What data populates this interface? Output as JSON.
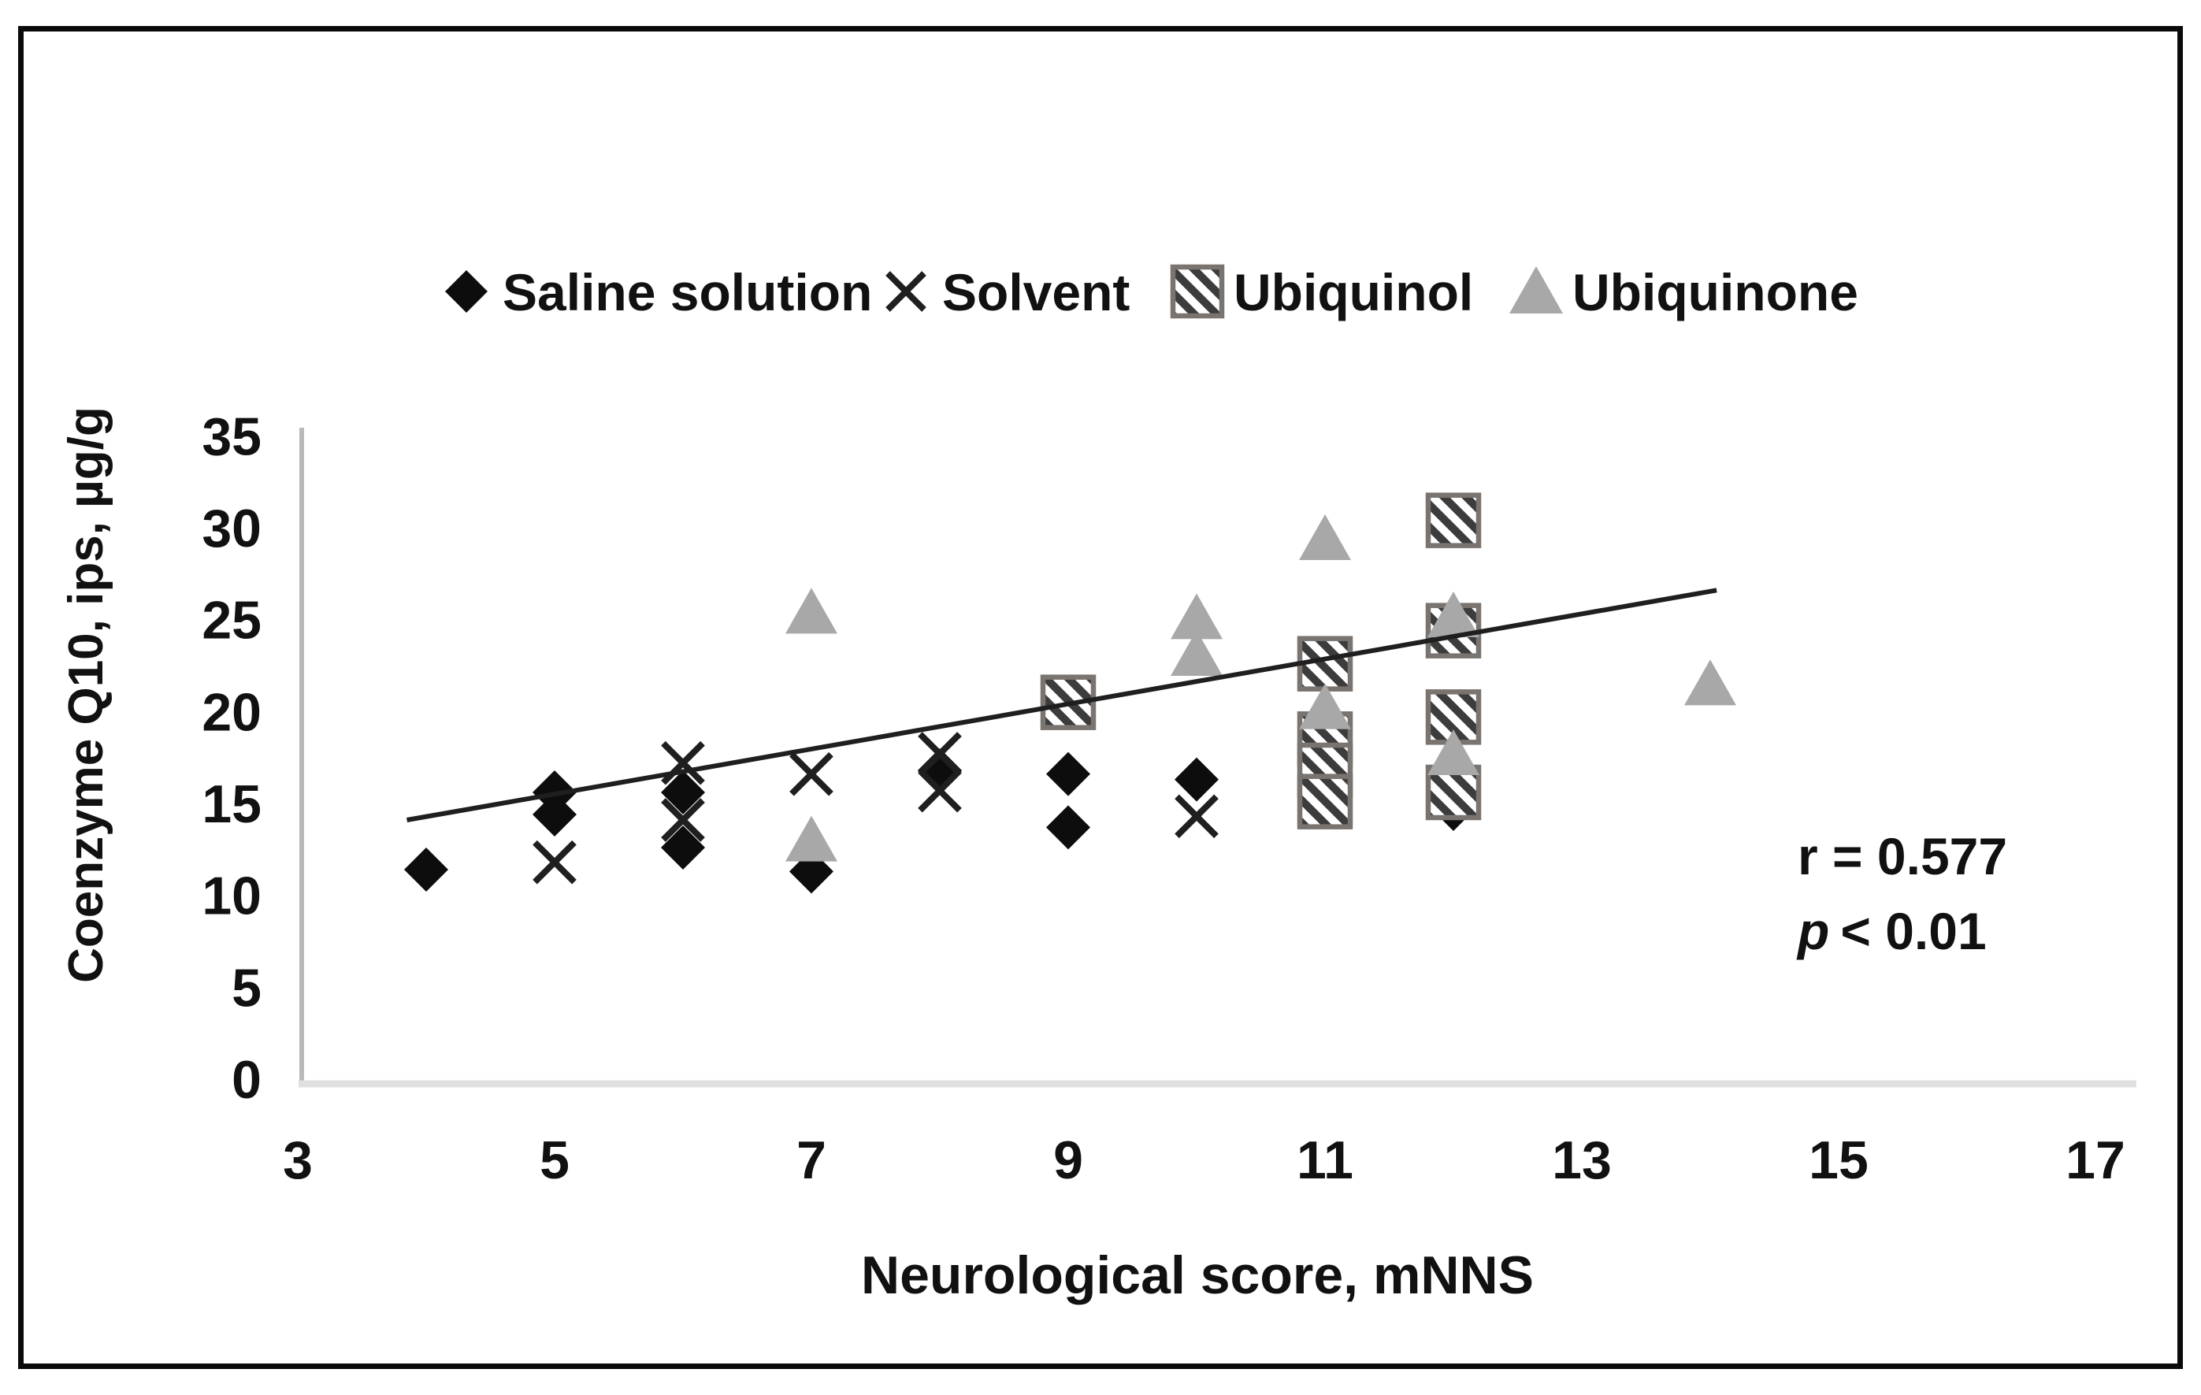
{
  "figure": {
    "type_label": "scatter plot",
    "background": "#ffffff",
    "border_color": "#0a0a0a"
  },
  "legend": {
    "position": "top",
    "items": [
      {
        "label": "Saline solution",
        "marker": "diamond-icon",
        "color": "#0d0d0d"
      },
      {
        "label": "Solvent",
        "marker": "x-cross-icon",
        "color": "#1f1f1f"
      },
      {
        "label": "Ubiquinol",
        "marker": "hatched-square-icon",
        "color": "#3c3c3c"
      },
      {
        "label": "Ubiquinone",
        "marker": "triangle-icon",
        "color": "#a8a8a8"
      }
    ]
  },
  "annotation": {
    "r_text": "r = 0.577",
    "p_var": "p",
    "p_rest": "< 0.01"
  },
  "chart_data": {
    "type": "scatter",
    "title": "",
    "xlabel": "Neurological score, mNNS",
    "ylabel": "Coenzyme Q10, ips, µg/g",
    "xlim": [
      3,
      17
    ],
    "ylim": [
      0,
      35
    ],
    "x_ticks": [
      3,
      5,
      7,
      9,
      11,
      13,
      15,
      17
    ],
    "y_ticks": [
      35,
      30,
      25,
      20,
      15,
      10,
      5,
      0
    ],
    "grid": false,
    "legend_position": "top",
    "series": [
      {
        "name": "Saline solution",
        "marker": "diamond",
        "color": "#0d0d0d",
        "points": [
          [
            4,
            11.4
          ],
          [
            5,
            15.6
          ],
          [
            5,
            14.4
          ],
          [
            6,
            15.6
          ],
          [
            6,
            12.6
          ],
          [
            7,
            11.3
          ],
          [
            8,
            16.8
          ],
          [
            9,
            16.6
          ],
          [
            9,
            13.7
          ],
          [
            10,
            16.3
          ],
          [
            12,
            14.7
          ]
        ]
      },
      {
        "name": "Solvent",
        "marker": "x",
        "color": "#1f1f1f",
        "points": [
          [
            5,
            11.8
          ],
          [
            6,
            17.2
          ],
          [
            6,
            14.1
          ],
          [
            7,
            16.6
          ],
          [
            8,
            17.7
          ],
          [
            8,
            15.7
          ],
          [
            10,
            14.3
          ]
        ]
      },
      {
        "name": "Ubiquinol",
        "marker": "hatched-square",
        "color": "#3c3c3c",
        "border_color": "#7a7470",
        "points": [
          [
            9,
            20.5
          ],
          [
            11,
            22.6
          ],
          [
            11,
            18.5
          ],
          [
            11,
            16.8
          ],
          [
            11,
            15.1
          ],
          [
            12,
            30.4
          ],
          [
            12,
            24.4
          ],
          [
            12,
            19.7
          ],
          [
            12,
            15.6
          ]
        ]
      },
      {
        "name": "Ubiquinone",
        "marker": "triangle",
        "color": "#a8a8a8",
        "points": [
          [
            7,
            25.4
          ],
          [
            7,
            13.0
          ],
          [
            10,
            25.1
          ],
          [
            10,
            23.1
          ],
          [
            11,
            29.4
          ],
          [
            11,
            20.2
          ],
          [
            12,
            25.2
          ],
          [
            12,
            17.7
          ],
          [
            14,
            21.5
          ]
        ]
      }
    ],
    "trendline": {
      "x1": 3.85,
      "y1": 14.1,
      "x2": 14.05,
      "y2": 26.6,
      "color": "#1f1f1f"
    },
    "stats": {
      "r": 0.577,
      "p": "< 0.01"
    }
  },
  "colors": {
    "axis_y": "#b9b9b9",
    "axis_x": "#e0e0e0",
    "text": "#111111",
    "trendline": "#1f1f1f",
    "hatch_fill": "#ffffff",
    "hatch_stripe": "#3c3c3c"
  }
}
